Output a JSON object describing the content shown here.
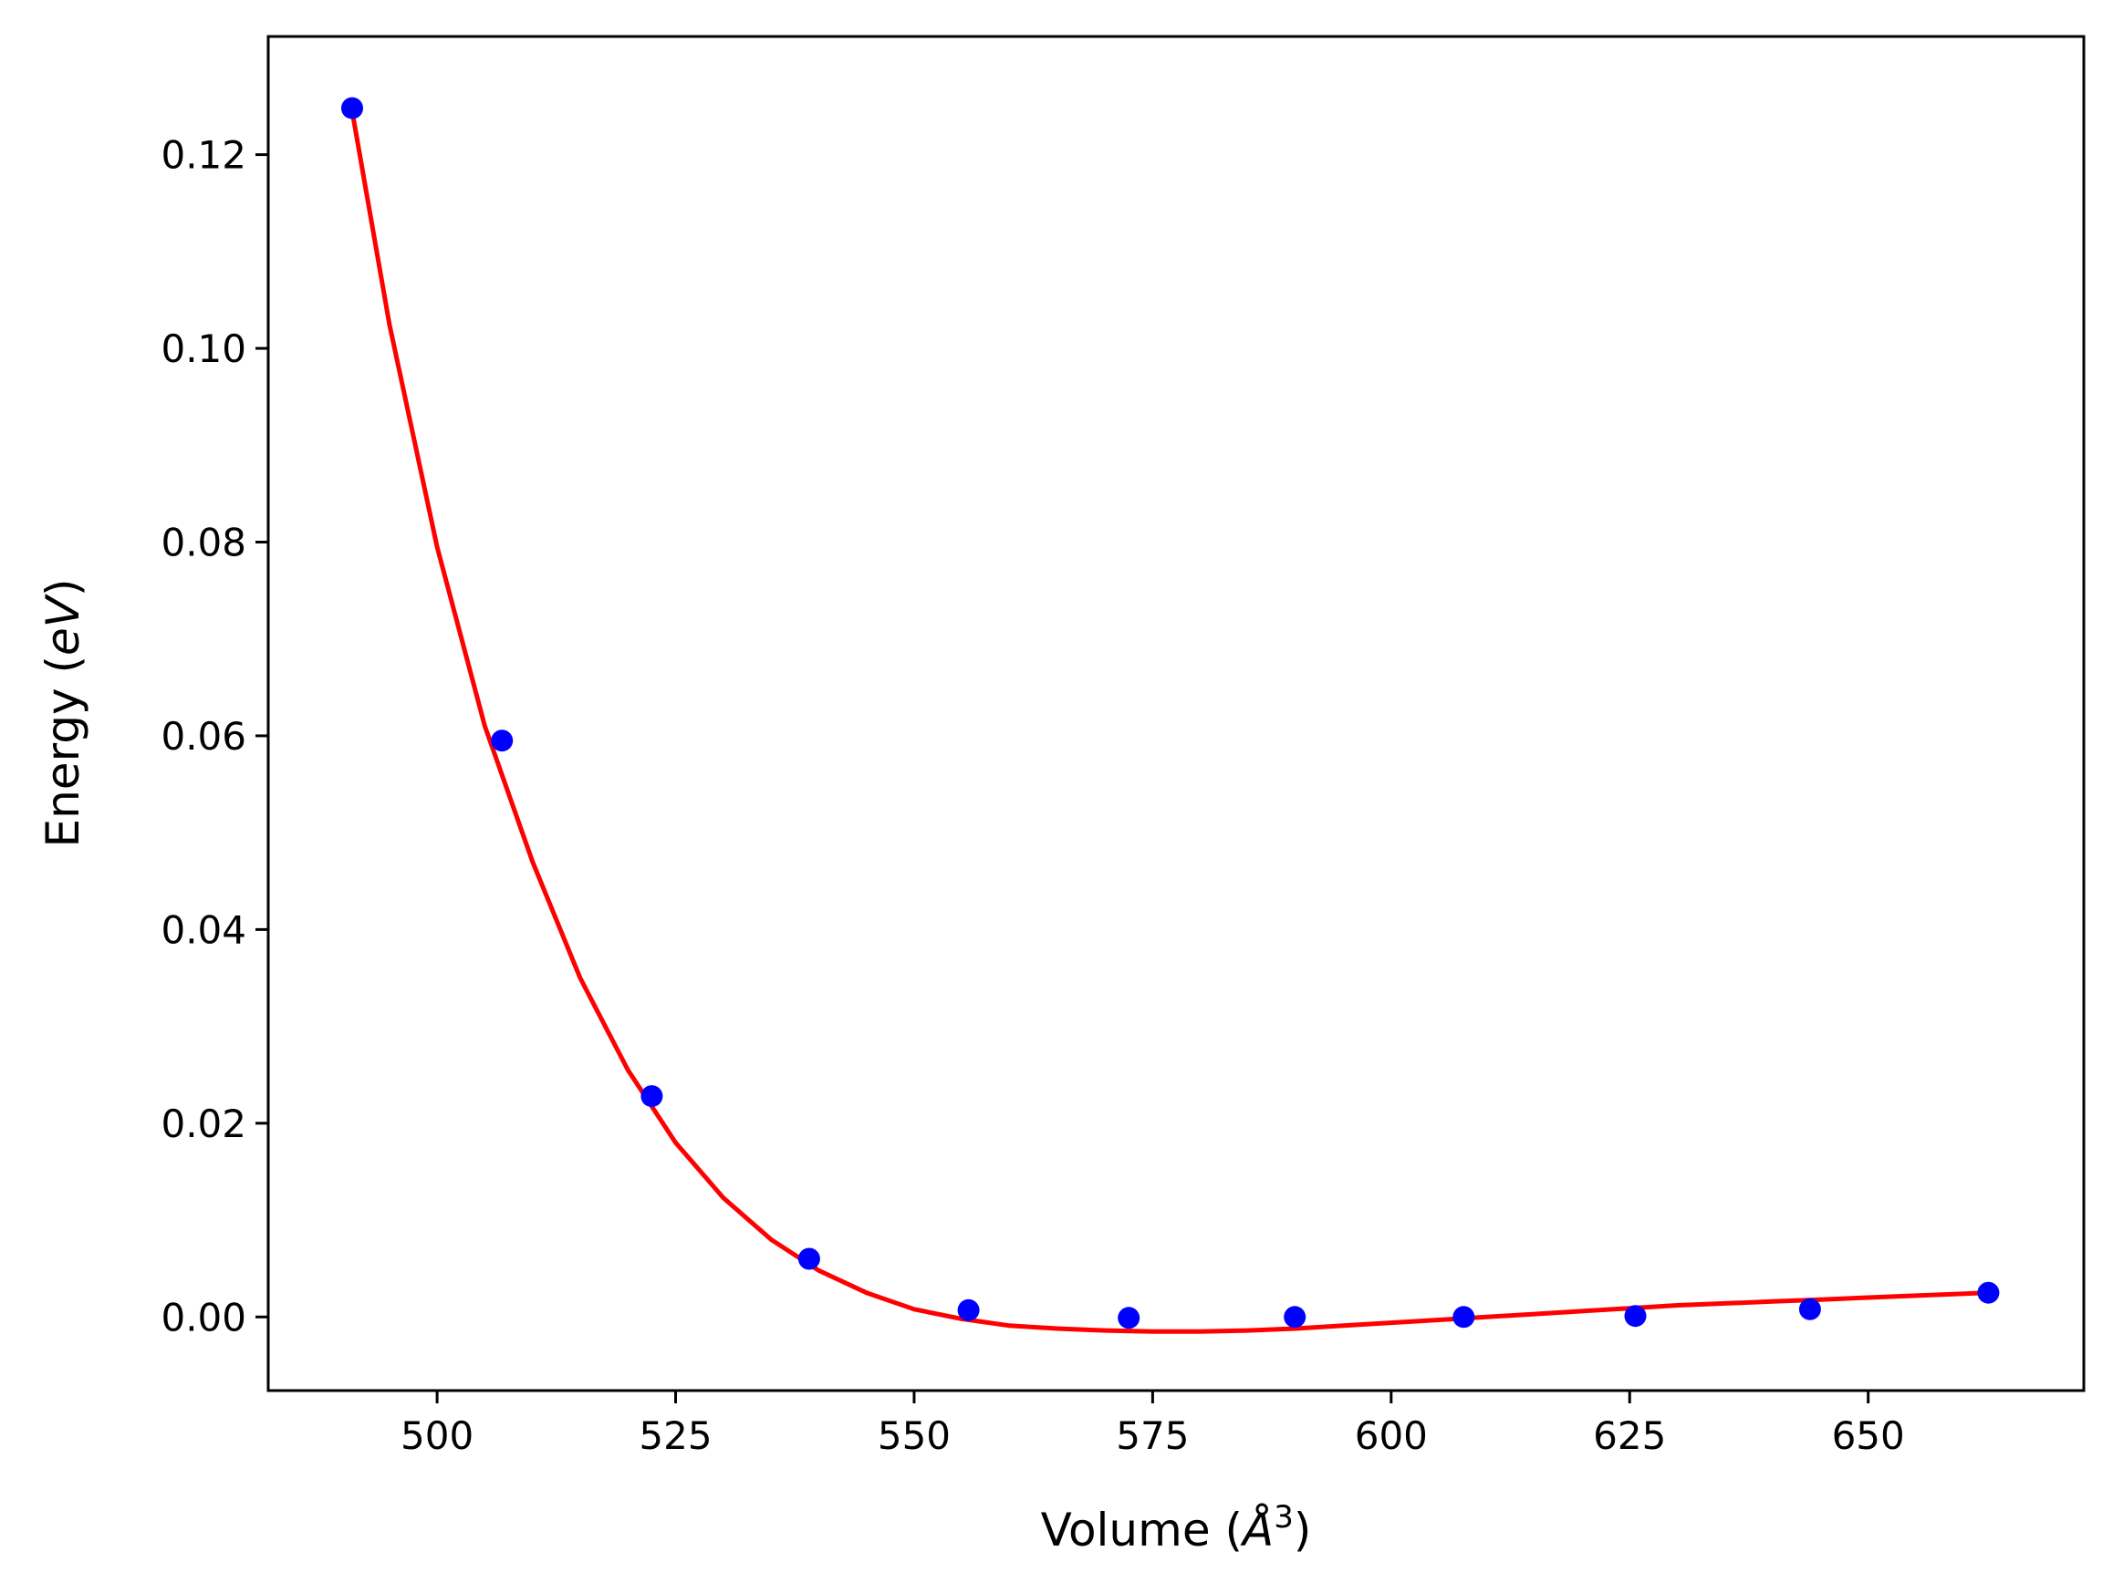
{
  "chart_data": {
    "type": "scatter",
    "title": "",
    "xlabel": {
      "prefix": "Volume (",
      "symbol": "Å",
      "superscript": "3",
      "suffix": ")"
    },
    "ylabel": {
      "prefix": "Energy (",
      "symbol": "eV",
      "suffix": ")"
    },
    "xlim": [
      482.3,
      672.6
    ],
    "ylim": [
      -0.0076,
      0.1322
    ],
    "xticks": [
      500,
      525,
      550,
      575,
      600,
      625,
      650
    ],
    "xtick_labels": [
      "500",
      "525",
      "550",
      "575",
      "600",
      "625",
      "650"
    ],
    "yticks": [
      0.0,
      0.02,
      0.04,
      0.06,
      0.08,
      0.1,
      0.12
    ],
    "ytick_labels": [
      "0.00",
      "0.02",
      "0.04",
      "0.06",
      "0.08",
      "0.10",
      "0.12"
    ],
    "grid": false,
    "series": [
      {
        "kind": "points",
        "color": "#0000ff",
        "x": [
          491.1,
          506.8,
          522.5,
          539.0,
          555.7,
          572.5,
          589.9,
          607.6,
          625.6,
          643.9,
          662.6
        ],
        "y": [
          0.1248,
          0.0595,
          0.0228,
          0.006,
          0.0007,
          -0.0001,
          0.0,
          0.0,
          0.0001,
          0.0008,
          0.0025
        ]
      },
      {
        "kind": "fit-curve",
        "color": "#ff0000",
        "x": [
          491.1,
          495,
          500,
          505,
          510,
          515,
          520,
          525,
          530,
          535,
          540,
          545,
          550,
          555,
          560,
          565,
          570,
          575,
          580,
          585,
          590,
          595,
          600,
          605,
          610,
          615,
          620,
          625,
          630,
          635,
          640,
          645,
          650,
          655,
          662.6
        ],
        "y": [
          0.1245,
          0.1025,
          0.0795,
          0.061,
          0.047,
          0.035,
          0.0255,
          0.018,
          0.0123,
          0.008,
          0.0048,
          0.0025,
          0.0008,
          -0.0002,
          -0.0009,
          -0.0012,
          -0.0014,
          -0.0015,
          -0.0015,
          -0.0014,
          -0.0012,
          -0.0009,
          -0.0006,
          -0.0003,
          0.0,
          0.0003,
          0.0006,
          0.0009,
          0.0012,
          0.0014,
          0.0016,
          0.0018,
          0.002,
          0.0022,
          0.0025
        ]
      }
    ]
  }
}
